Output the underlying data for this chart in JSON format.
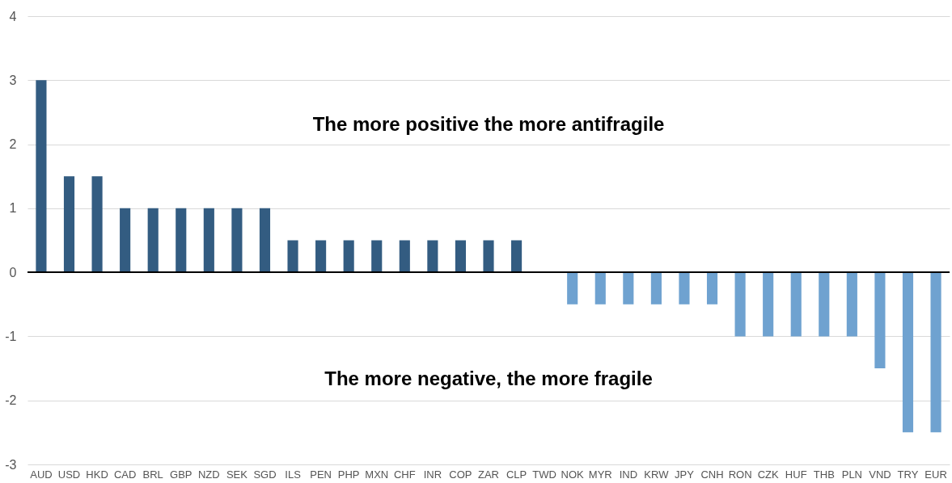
{
  "chart_data": {
    "type": "bar",
    "categories": [
      "AUD",
      "USD",
      "HKD",
      "CAD",
      "BRL",
      "GBP",
      "NZD",
      "SEK",
      "SGD",
      "ILS",
      "PEN",
      "PHP",
      "MXN",
      "CHF",
      "INR",
      "COP",
      "ZAR",
      "CLP",
      "TWD",
      "NOK",
      "MYR",
      "IND",
      "KRW",
      "JPY",
      "CNH",
      "RON",
      "CZK",
      "HUF",
      "THB",
      "PLN",
      "VND",
      "TRY",
      "EUR"
    ],
    "values": [
      3,
      1.5,
      1.5,
      1,
      1,
      1,
      1,
      1,
      1,
      0.5,
      0.5,
      0.5,
      0.5,
      0.5,
      0.5,
      0.5,
      0.5,
      0.5,
      0,
      -0.5,
      -0.5,
      -0.5,
      -0.5,
      -0.5,
      -0.5,
      -1,
      -1,
      -1,
      -1,
      -1,
      -1.5,
      -2.5,
      -2.5
    ],
    "colors": [
      "#335c81",
      "#335c81",
      "#335c81",
      "#335c81",
      "#335c81",
      "#335c81",
      "#335c81",
      "#335c81",
      "#335c81",
      "#335c81",
      "#335c81",
      "#335c81",
      "#335c81",
      "#335c81",
      "#335c81",
      "#335c81",
      "#335c81",
      "#335c81",
      "#335c81",
      "#6fa2d0",
      "#6fa2d0",
      "#6fa2d0",
      "#6fa2d0",
      "#6fa2d0",
      "#6fa2d0",
      "#6fa2d0",
      "#6fa2d0",
      "#6fa2d0",
      "#6fa2d0",
      "#6fa2d0",
      "#6fa2d0",
      "#6fa2d0",
      "#6fa2d0"
    ],
    "ylim": [
      -3,
      4
    ],
    "yticks": [
      -3,
      -2,
      -1,
      0,
      1,
      2,
      3,
      4
    ],
    "grid": "y",
    "annotations": [
      "The more positive the more antifragile",
      "The more negative, the more fragile"
    ]
  }
}
